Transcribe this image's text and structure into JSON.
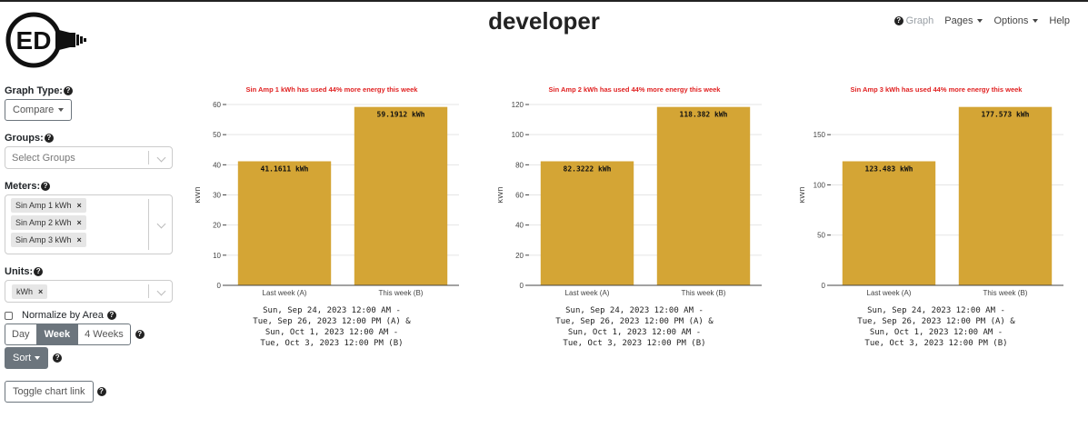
{
  "header": {
    "title": "developer",
    "logo_text": "ED",
    "nav": {
      "graph": "Graph",
      "pages": "Pages",
      "options": "Options",
      "help": "Help"
    }
  },
  "sidebar": {
    "graph_type_label": "Graph Type:",
    "graph_type_value": "Compare",
    "groups_label": "Groups:",
    "groups_placeholder": "Select Groups",
    "meters_label": "Meters:",
    "meters": [
      "Sin Amp 1 kWh",
      "Sin Amp 2 kWh",
      "Sin Amp 3 kWh"
    ],
    "units_label": "Units:",
    "units": [
      "kWh"
    ],
    "normalize_label": "Normalize by Area",
    "normalize_checked": false,
    "intervals": [
      "Day",
      "Week",
      "4 Weeks"
    ],
    "interval_selected": "Week",
    "sort_label": "Sort",
    "toggle_link_label": "Toggle chart link"
  },
  "chart_data": [
    {
      "type": "bar",
      "title": "Sin Amp 1 kWh has used 44% more energy this week",
      "categories": [
        "Last week (A)",
        "This week (B)"
      ],
      "values": [
        41.1611,
        59.1912
      ],
      "value_labels": [
        "41.1611 kWh",
        "59.1912 kWh"
      ],
      "ylabel": "kWh",
      "ylim": [
        0,
        60
      ],
      "yticks": [
        0,
        10,
        20,
        30,
        40,
        50,
        60
      ],
      "bar_color": "#d4a535",
      "title_color": "#e02020",
      "caption": [
        "Sun, Sep 24, 2023 12:00 AM -",
        "Tue, Sep 26, 2023 12:00 PM (A) &",
        "Sun, Oct 1, 2023 12:00 AM -",
        "Tue, Oct 3, 2023 12:00 PM (B)"
      ]
    },
    {
      "type": "bar",
      "title": "Sin Amp 2 kWh has used 44% more energy this week",
      "categories": [
        "Last week (A)",
        "This week (B)"
      ],
      "values": [
        82.3222,
        118.382
      ],
      "value_labels": [
        "82.3222 kWh",
        "118.382 kWh"
      ],
      "ylabel": "kWh",
      "ylim": [
        0,
        120
      ],
      "yticks": [
        0,
        20,
        40,
        60,
        80,
        100,
        120
      ],
      "bar_color": "#d4a535",
      "title_color": "#e02020",
      "caption": [
        "Sun, Sep 24, 2023 12:00 AM -",
        "Tue, Sep 26, 2023 12:00 PM (A) &",
        "Sun, Oct 1, 2023 12:00 AM -",
        "Tue, Oct 3, 2023 12:00 PM (B)"
      ]
    },
    {
      "type": "bar",
      "title": "Sin Amp 3 kWh has used 44% more energy this week",
      "categories": [
        "Last week (A)",
        "This week (B)"
      ],
      "values": [
        123.483,
        177.573
      ],
      "value_labels": [
        "123.483 kWh",
        "177.573 kWh"
      ],
      "ylabel": "kWh",
      "ylim": [
        0,
        180
      ],
      "yticks": [
        0,
        50,
        100,
        150
      ],
      "bar_color": "#d4a535",
      "title_color": "#e02020",
      "caption": [
        "Sun, Sep 24, 2023 12:00 AM -",
        "Tue, Sep 26, 2023 12:00 PM (A) &",
        "Sun, Oct 1, 2023 12:00 AM -",
        "Tue, Oct 3, 2023 12:00 PM (B)"
      ]
    }
  ]
}
